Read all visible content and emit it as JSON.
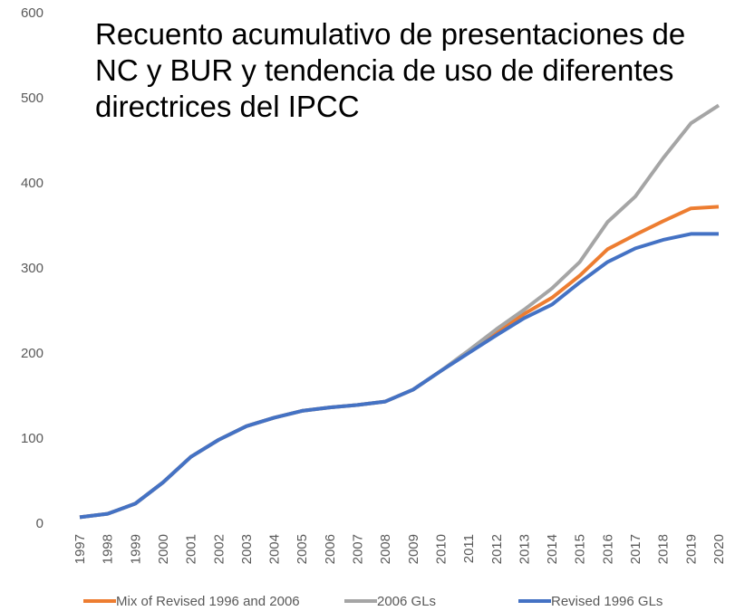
{
  "chart_data": {
    "type": "line",
    "title": "Recuento acumulativo de presentaciones de NC y BUR y tendencia de uso de diferentes directrices del IPCC",
    "categories": [
      "1997",
      "1998",
      "1999",
      "2000",
      "2001",
      "2002",
      "2003",
      "2004",
      "2005",
      "2006",
      "2007",
      "2008",
      "2009",
      "2010",
      "2011",
      "2012",
      "2013",
      "2014",
      "2015",
      "2016",
      "2017",
      "2018",
      "2019",
      "2020"
    ],
    "series": [
      {
        "name": "Mix of Revised 1996 and 2006",
        "color": "#ed7d31",
        "values": [
          7,
          11,
          23,
          48,
          78,
          98,
          114,
          124,
          132,
          136,
          139,
          143,
          157,
          179,
          201,
          224,
          246,
          265,
          291,
          322,
          339,
          355,
          370,
          372
        ]
      },
      {
        "name": "2006 GLs",
        "color": "#a5a5a5",
        "values": [
          7,
          11,
          23,
          48,
          78,
          98,
          114,
          124,
          132,
          136,
          139,
          143,
          157,
          179,
          203,
          228,
          251,
          276,
          307,
          354,
          384,
          429,
          470,
          491
        ]
      },
      {
        "name": "Revised 1996 GLs",
        "color": "#4472c4",
        "values": [
          7,
          11,
          23,
          48,
          78,
          98,
          114,
          124,
          132,
          136,
          139,
          143,
          157,
          179,
          200,
          221,
          241,
          257,
          283,
          307,
          323,
          333,
          340,
          340
        ]
      }
    ],
    "ylim": [
      0,
      600
    ],
    "yticks": [
      0,
      100,
      200,
      300,
      400,
      500,
      600
    ],
    "legend": "bottom"
  }
}
